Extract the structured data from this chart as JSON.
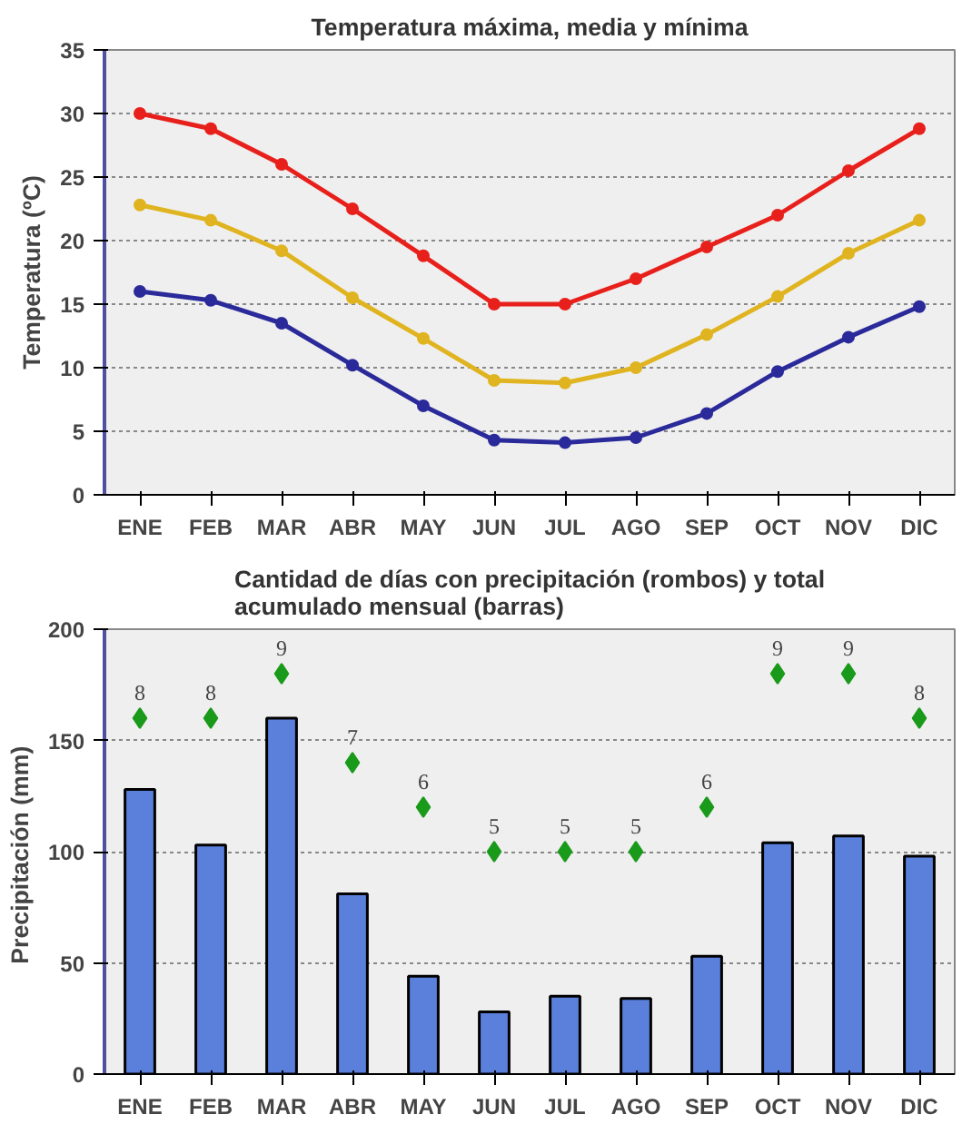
{
  "chart_data": [
    {
      "type": "line",
      "title": "Temperatura máxima, media y mínima",
      "ylabel": "Temperatura (ºC)",
      "categories": [
        "ENE",
        "FEB",
        "MAR",
        "ABR",
        "MAY",
        "JUN",
        "JUL",
        "AGO",
        "SEP",
        "OCT",
        "NOV",
        "DIC"
      ],
      "series": [
        {
          "color": "#e8201c",
          "values": [
            30,
            28.8,
            26,
            22.5,
            18.8,
            15,
            15,
            17,
            19.5,
            22,
            25.5,
            28.8
          ]
        },
        {
          "color": "#e0b420",
          "values": [
            22.8,
            21.6,
            19.2,
            15.5,
            12.3,
            9,
            8.8,
            10,
            12.6,
            15.6,
            19,
            21.6
          ]
        },
        {
          "color": "#2a2a9a",
          "values": [
            16,
            15.3,
            13.5,
            10.2,
            7,
            4.3,
            4.1,
            4.5,
            6.4,
            9.7,
            12.4,
            14.8
          ]
        }
      ],
      "ylim": [
        0,
        35
      ],
      "yticks": [
        0,
        5,
        10,
        15,
        20,
        25,
        30,
        35
      ],
      "grid": "y",
      "marker": "circle",
      "line_style": "solid"
    },
    {
      "type": "bar",
      "title": "Cantidad de días con precipitación (rombos) y total acumulado mensual (barras)",
      "ylabel": "Precipitación  (mm)",
      "categories": [
        "ENE",
        "FEB",
        "MAR",
        "ABR",
        "MAY",
        "JUN",
        "JUL",
        "AGO",
        "SEP",
        "OCT",
        "NOV",
        "DIC"
      ],
      "series": [
        {
          "color": "#5a80dc",
          "values": [
            128,
            103,
            160,
            81,
            44,
            28,
            35,
            34,
            53,
            104,
            107,
            98
          ]
        },
        {
          "type": "scatter",
          "axis": "y2",
          "color": "#1a9a1a",
          "values": [
            8,
            8,
            9,
            7,
            6,
            5,
            5,
            5,
            6,
            9,
            9,
            8
          ],
          "data_labels": true
        }
      ],
      "ylim": [
        0,
        200
      ],
      "yticks": [
        0,
        50,
        100,
        150,
        200
      ],
      "y2lim": [
        0,
        10
      ],
      "tick_labels": "xy",
      "grid": "y",
      "marker": "diamond"
    }
  ]
}
